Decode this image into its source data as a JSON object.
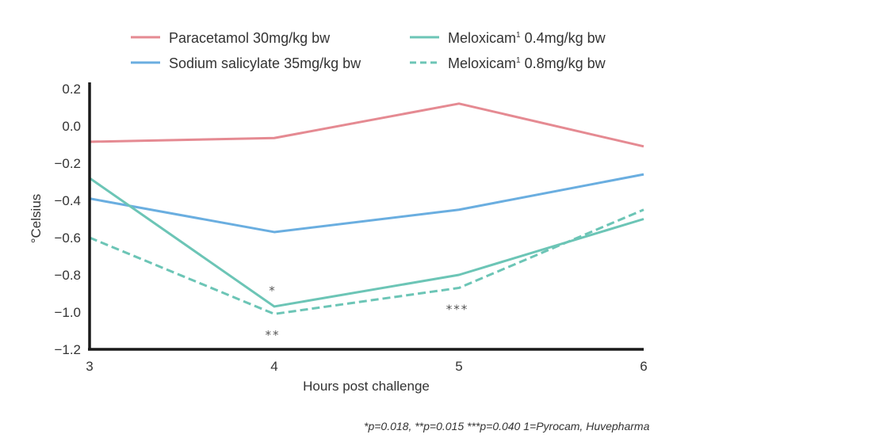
{
  "chart_data": {
    "type": "line",
    "title": "",
    "xlabel": "Hours post challenge",
    "ylabel": "°Celsius",
    "x": [
      3,
      4,
      5,
      6
    ],
    "xlim": [
      3,
      6
    ],
    "ylim": [
      -1.2,
      0.2
    ],
    "xticks": [
      "3",
      "4",
      "5",
      "6"
    ],
    "yticks": [
      0.2,
      0.0,
      -0.2,
      -0.4,
      -0.6,
      -0.8,
      -1.0,
      -1.2
    ],
    "ytick_labels": [
      "0.2",
      "0.0",
      "−0.2",
      "−0.4",
      "−0.6",
      "−0.8",
      "−1.0",
      "−1.2"
    ],
    "grid": false,
    "legend_position": "top",
    "series": [
      {
        "name": "Paracetamol 30mg/kg bw",
        "label_main": "Paracetamol 30mg/kg bw",
        "sup": "",
        "label_rest": "",
        "color": "#e58a92",
        "dashed": false,
        "values": [
          -0.085,
          -0.065,
          0.12,
          -0.11
        ]
      },
      {
        "name": "Sodium salicylate 35mg/kg bw",
        "label_main": "Sodium salicylate 35mg/kg bw",
        "sup": "",
        "label_rest": "",
        "color": "#6aaee0",
        "dashed": false,
        "values": [
          -0.39,
          -0.57,
          -0.45,
          -0.26
        ]
      },
      {
        "name": "Meloxicam1 0.4mg/kg bw",
        "label_main": "Meloxicam",
        "sup": "1",
        "label_rest": " 0.4mg/kg bw",
        "color": "#6cc5b6",
        "dashed": false,
        "values": [
          -0.28,
          -0.97,
          -0.8,
          -0.5
        ]
      },
      {
        "name": "Meloxicam1 0.8mg/kg bw",
        "label_main": "Meloxicam",
        "sup": "1",
        "label_rest": " 0.8mg/kg bw",
        "color": "#6cc5b6",
        "dashed": true,
        "values": [
          -0.6,
          -1.01,
          -0.87,
          -0.45
        ]
      }
    ],
    "annotations": [
      {
        "text": "*",
        "x": 4,
        "y": -0.88
      },
      {
        "text": "**",
        "x": 4,
        "y": -1.12
      },
      {
        "text": "***",
        "x": 5,
        "y": -0.98
      }
    ]
  },
  "footnote": "*p=0.018,  **p=0.015  ***p=0.040  1=Pyrocam, Huvepharma"
}
